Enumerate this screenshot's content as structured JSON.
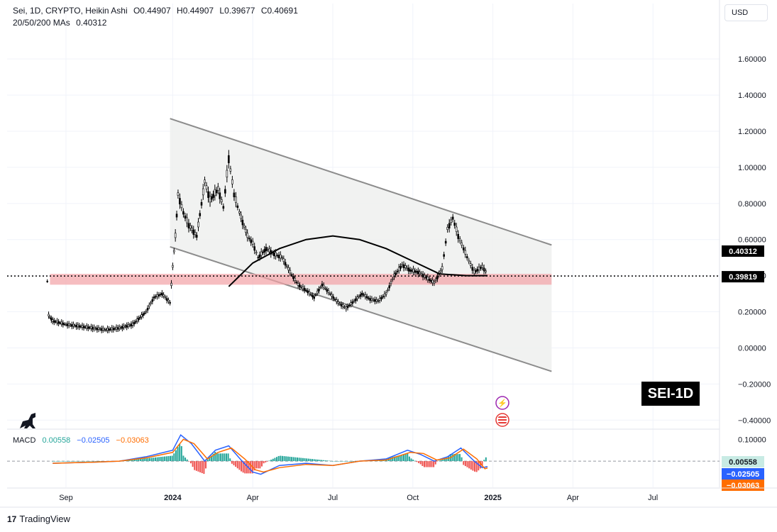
{
  "header": {
    "symbol_line": "Sei, 1D, CRYPTO, Heikin Ashi",
    "open": "O0.44907",
    "high": "H0.44907",
    "low": "L0.39677",
    "close": "C0.40691",
    "ma_label": "20/50/200 MAs",
    "ma_value": "0.40312"
  },
  "currency_button": "USD",
  "badge_text": "SEI-1D",
  "brand": "TradingView",
  "macd": {
    "label": "MACD",
    "hist_value": "0.00558",
    "macd_value": "−0.02505",
    "signal_value": "−0.03063"
  },
  "price_labels": {
    "ma": "0.40312",
    "level": "0.39819",
    "macd_hist": "0.00558",
    "macd_line": "−0.02505",
    "macd_signal": "−0.03063"
  },
  "colors": {
    "ma_label": "#000000",
    "level_label": "#000000",
    "support_band": "#f2a1a5",
    "channel_fill": "#eef0ee",
    "macd_line": "#2962ff",
    "signal_line": "#ff6d00",
    "hist_pos": "#26a69a",
    "hist_neg": "#ef5350"
  },
  "chart_data": {
    "type": "candlestick",
    "candle_type": "Heikin Ashi",
    "y_ticks": [
      "1.60000",
      "1.40000",
      "1.20000",
      "1.00000",
      "0.80000",
      "0.60000",
      "0.40000",
      "0.20000",
      "0.00000",
      "−0.20000",
      "−0.40000"
    ],
    "y_tick_values": [
      1.6,
      1.4,
      1.2,
      1.0,
      0.8,
      0.6,
      0.4,
      0.2,
      0.0,
      -0.2,
      -0.4
    ],
    "ylim": [
      -0.45,
      1.75
    ],
    "x_ticks": [
      "Sep",
      "2024",
      "Apr",
      "Jul",
      "Oct",
      "2025",
      "Apr",
      "Jul"
    ],
    "x_tick_bold": [
      false,
      true,
      false,
      false,
      false,
      true,
      false,
      false
    ],
    "x_tick_months": [
      0,
      4,
      7,
      10,
      13,
      16,
      19,
      22
    ],
    "price_path": [
      [
        -0.7,
        0.37
      ],
      [
        -0.65,
        0.18
      ],
      [
        -0.5,
        0.15
      ],
      [
        0,
        0.13
      ],
      [
        0.5,
        0.12
      ],
      [
        1,
        0.11
      ],
      [
        1.5,
        0.1
      ],
      [
        2,
        0.11
      ],
      [
        2.5,
        0.13
      ],
      [
        3,
        0.2
      ],
      [
        3.3,
        0.28
      ],
      [
        3.6,
        0.3
      ],
      [
        3.9,
        0.25
      ],
      [
        4,
        0.45
      ],
      [
        4.1,
        0.62
      ],
      [
        4.2,
        0.85
      ],
      [
        4.4,
        0.75
      ],
      [
        4.6,
        0.68
      ],
      [
        4.9,
        0.62
      ],
      [
        5.2,
        0.92
      ],
      [
        5.4,
        0.82
      ],
      [
        5.7,
        0.88
      ],
      [
        5.9,
        0.78
      ],
      [
        6.1,
        1.05
      ],
      [
        6.3,
        0.85
      ],
      [
        6.5,
        0.75
      ],
      [
        6.8,
        0.62
      ],
      [
        7.0,
        0.58
      ],
      [
        7.2,
        0.5
      ],
      [
        7.5,
        0.55
      ],
      [
        7.8,
        0.52
      ],
      [
        8.1,
        0.5
      ],
      [
        8.4,
        0.42
      ],
      [
        8.7,
        0.35
      ],
      [
        9.0,
        0.32
      ],
      [
        9.3,
        0.28
      ],
      [
        9.6,
        0.35
      ],
      [
        9.9,
        0.3
      ],
      [
        10.2,
        0.25
      ],
      [
        10.5,
        0.22
      ],
      [
        10.8,
        0.26
      ],
      [
        11.1,
        0.3
      ],
      [
        11.4,
        0.27
      ],
      [
        11.7,
        0.26
      ],
      [
        12.0,
        0.3
      ],
      [
        12.3,
        0.4
      ],
      [
        12.6,
        0.46
      ],
      [
        12.9,
        0.43
      ],
      [
        13.2,
        0.42
      ],
      [
        13.5,
        0.39
      ],
      [
        13.8,
        0.36
      ],
      [
        14.1,
        0.44
      ],
      [
        14.3,
        0.66
      ],
      [
        14.5,
        0.72
      ],
      [
        14.7,
        0.62
      ],
      [
        14.9,
        0.55
      ],
      [
        15.1,
        0.48
      ],
      [
        15.3,
        0.42
      ],
      [
        15.6,
        0.45
      ],
      [
        15.8,
        0.41
      ]
    ],
    "ma200": [
      [
        6.1,
        0.34
      ],
      [
        7,
        0.47
      ],
      [
        8,
        0.55
      ],
      [
        9,
        0.6
      ],
      [
        10,
        0.62
      ],
      [
        11,
        0.6
      ],
      [
        12,
        0.55
      ],
      [
        13,
        0.48
      ],
      [
        14,
        0.41
      ],
      [
        15,
        0.4
      ],
      [
        15.8,
        0.4
      ]
    ],
    "support_band": [
      0.35,
      0.41
    ],
    "dotted_level": 0.39819,
    "channel": {
      "upper": [
        [
          3.9,
          1.27
        ],
        [
          18.2,
          0.57
        ]
      ],
      "lower": [
        [
          3.9,
          0.56
        ],
        [
          18.2,
          -0.13
        ]
      ]
    },
    "macd_ylim": [
      -0.12,
      0.14
    ],
    "macd_ticks": [
      "0.10000"
    ],
    "macd_tick_values": [
      0.1
    ],
    "macd_line": [
      [
        -0.5,
        -0.01
      ],
      [
        1,
        -0.005
      ],
      [
        2,
        0.0
      ],
      [
        3,
        0.02
      ],
      [
        4,
        0.05
      ],
      [
        4.3,
        0.12
      ],
      [
        4.7,
        0.08
      ],
      [
        5.2,
        0.0
      ],
      [
        5.6,
        0.05
      ],
      [
        6.1,
        0.07
      ],
      [
        6.6,
        0.0
      ],
      [
        7,
        -0.05
      ],
      [
        7.3,
        -0.06
      ],
      [
        8,
        -0.02
      ],
      [
        9,
        -0.01
      ],
      [
        10,
        -0.02
      ],
      [
        11,
        0.0
      ],
      [
        12,
        0.01
      ],
      [
        12.8,
        0.05
      ],
      [
        13.3,
        0.03
      ],
      [
        13.8,
        0.0
      ],
      [
        14.3,
        0.02
      ],
      [
        14.8,
        0.06
      ],
      [
        15.3,
        0.0
      ],
      [
        15.6,
        -0.03
      ],
      [
        15.8,
        -0.025
      ]
    ],
    "signal_line": [
      [
        -0.5,
        -0.01
      ],
      [
        1,
        -0.005
      ],
      [
        2,
        0.0
      ],
      [
        3,
        0.015
      ],
      [
        4,
        0.04
      ],
      [
        4.4,
        0.1
      ],
      [
        4.8,
        0.08
      ],
      [
        5.3,
        0.01
      ],
      [
        5.7,
        0.04
      ],
      [
        6.2,
        0.06
      ],
      [
        6.7,
        0.01
      ],
      [
        7.1,
        -0.04
      ],
      [
        7.4,
        -0.05
      ],
      [
        8,
        -0.03
      ],
      [
        9,
        -0.015
      ],
      [
        10,
        -0.02
      ],
      [
        11,
        0.0
      ],
      [
        12,
        0.005
      ],
      [
        12.9,
        0.04
      ],
      [
        13.4,
        0.035
      ],
      [
        13.9,
        0.005
      ],
      [
        14.4,
        0.015
      ],
      [
        14.9,
        0.055
      ],
      [
        15.4,
        0.01
      ],
      [
        15.7,
        -0.035
      ],
      [
        15.8,
        -0.031
      ]
    ]
  }
}
